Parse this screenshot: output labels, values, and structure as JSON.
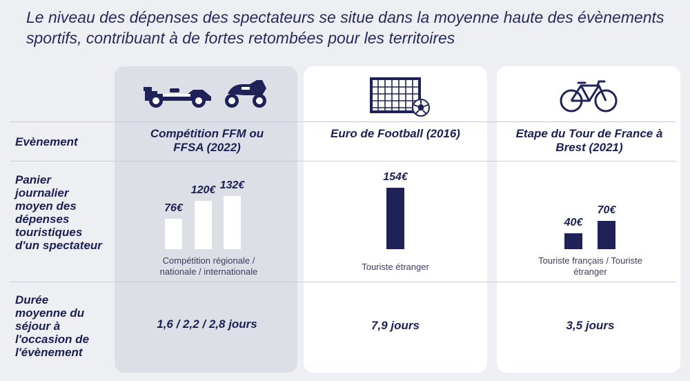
{
  "headline": "Le niveau des dépenses des spectateurs se situe dans la moyenne haute des évènements sportifs, contribuant à de fortes retombées pour les territoires",
  "row_labels": {
    "event": "Evènement",
    "basket": "Panier journalier moyen des dépenses touristiques d'un spectateur",
    "duration": "Durée moyenne du séjour à l'occasion de l'évènement"
  },
  "colors": {
    "navy": "#1f2257",
    "white": "#ffffff"
  },
  "columns": [
    {
      "event": "Compétition FFM ou FFSA (2022)",
      "icons": [
        "formula-car-icon",
        "motorcycle-icon"
      ],
      "caption": "Compétition régionale / nationale / internationale",
      "duration": "1,6 / 2,2 / 2,8 jours"
    },
    {
      "event": "Euro de Football (2016)",
      "icons": [
        "football-goal-icon",
        "soccer-ball-icon"
      ],
      "caption": "Touriste étranger",
      "duration": "7,9 jours"
    },
    {
      "event": "Etape du Tour de France à Brest (2021)",
      "icons": [
        "bicycle-icon"
      ],
      "caption": "Touriste français / Touriste étranger",
      "duration": "3,5 jours"
    }
  ],
  "chart_data": [
    {
      "type": "bar",
      "categories": [
        "Compétition régionale",
        "nationale",
        "internationale"
      ],
      "values": [
        76,
        120,
        132
      ],
      "value_labels": [
        "76€",
        "120€",
        "132€"
      ],
      "bar_color": "#ffffff"
    },
    {
      "type": "bar",
      "categories": [
        "Touriste étranger"
      ],
      "values": [
        154
      ],
      "value_labels": [
        "154€"
      ],
      "bar_color": "#1f2257"
    },
    {
      "type": "bar",
      "categories": [
        "Touriste français",
        "Touriste étranger"
      ],
      "values": [
        40,
        70
      ],
      "value_labels": [
        "40€",
        "70€"
      ],
      "bar_color": "#1f2257"
    }
  ]
}
